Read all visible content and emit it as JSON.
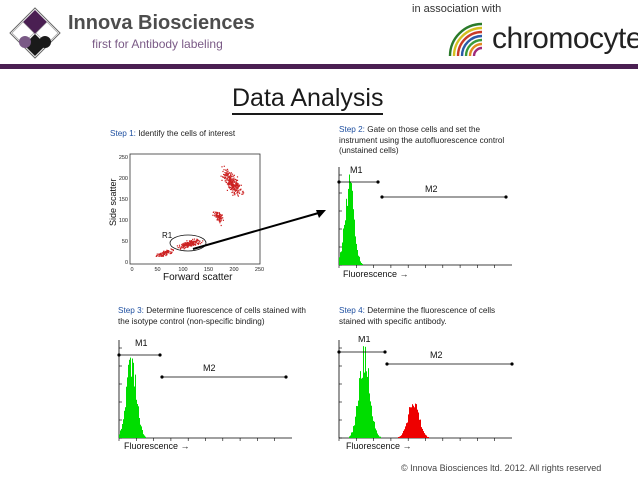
{
  "header": {
    "brand_name": "Innova Biosciences",
    "brand_tagline": "first for Antibody labeling",
    "association_text": "in association with",
    "partner_name": "chromocyte"
  },
  "title": "Data Analysis",
  "steps": [
    {
      "label": "Step 1:",
      "text": "Identify the cells of interest"
    },
    {
      "label": "Step 2:",
      "text": "Gate on those cells and set the instrument using the autofluorescence control (unstained cells)"
    },
    {
      "label": "Step 3:",
      "text": "Determine fluorescence of cells stained with the isotype control (non-specific binding)"
    },
    {
      "label": "Step 4:",
      "text": "Determine the fluorescence of cells stained with specific antibody."
    }
  ],
  "scatter_plot": {
    "xlabel": "Forward scatter",
    "ylabel": "Side scatter",
    "gate_label": "R1",
    "x_ticks": [
      "0",
      "50",
      "100",
      "150",
      "200",
      "250"
    ],
    "y_ticks": [
      "0",
      "50",
      "100",
      "150",
      "200",
      "250"
    ]
  },
  "histograms": {
    "xlabel": "Fluorescence →",
    "m1_label": "M1",
    "m2_label": "M2"
  },
  "colors": {
    "brand_purple": "#4a1f52",
    "step_label_blue": "#1e4fa0",
    "histogram_negative": "#00dd00",
    "histogram_positive": "#ee0000",
    "scatter_dots": "#cc2222"
  },
  "footer": {
    "copyright": "© Innova Biosciences ltd. 2012. All rights reserved"
  }
}
